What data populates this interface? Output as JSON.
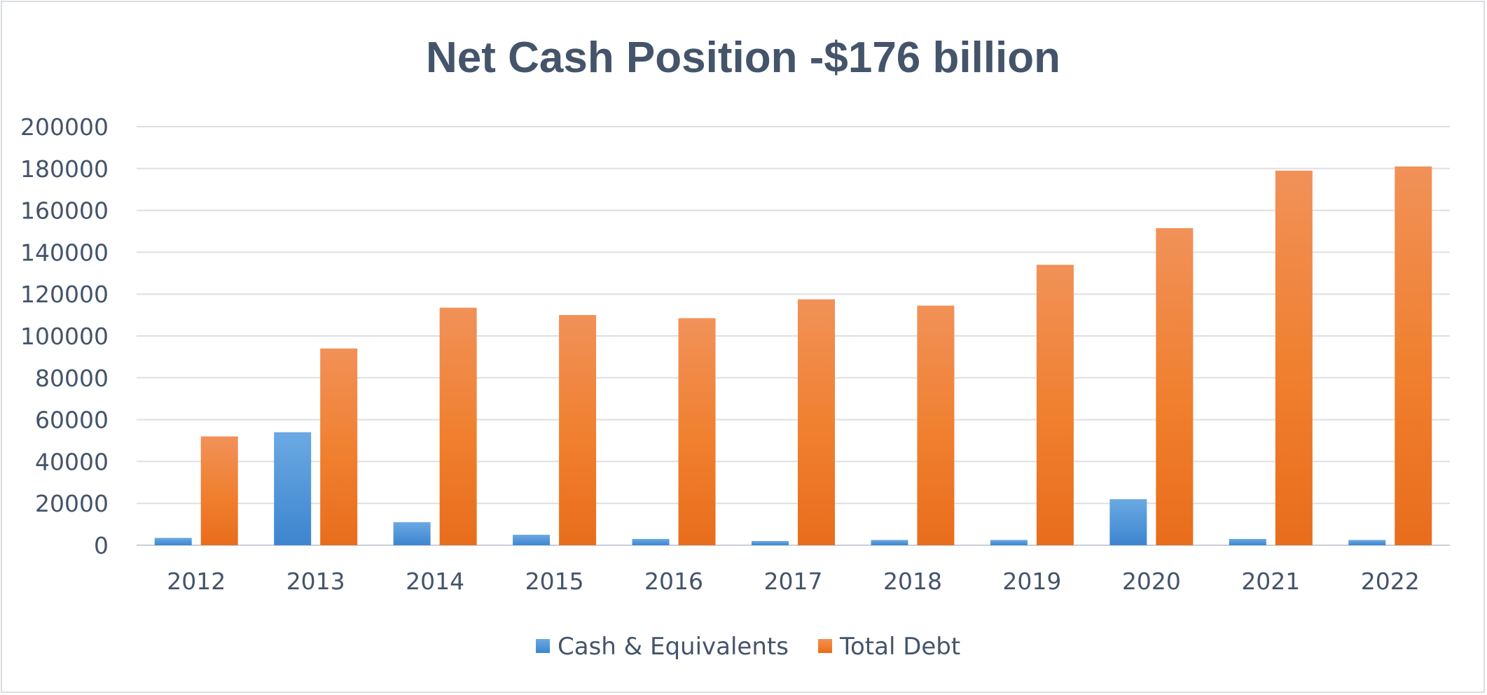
{
  "chart_data": {
    "type": "bar",
    "title": "Net Cash Position -$176 billion",
    "xlabel": "",
    "ylabel": "",
    "categories": [
      "2012",
      "2013",
      "2014",
      "2015",
      "2016",
      "2017",
      "2018",
      "2019",
      "2020",
      "2021",
      "2022"
    ],
    "series": [
      {
        "name": "Cash & Equivalents",
        "color": "#4a8fd6",
        "values": [
          3500,
          54000,
          11000,
          5000,
          3000,
          2000,
          2500,
          2500,
          22000,
          3000,
          2500
        ]
      },
      {
        "name": "Total Debt",
        "color": "#ef7d2d",
        "values": [
          52000,
          94000,
          113500,
          110000,
          108500,
          117500,
          114500,
          134000,
          151500,
          179000,
          181000
        ]
      }
    ],
    "ylim": [
      0,
      200000
    ],
    "yticks": [
      "0",
      "20000",
      "40000",
      "60000",
      "80000",
      "100000",
      "120000",
      "140000",
      "160000",
      "180000",
      "200000"
    ],
    "grid": true,
    "legend": "bottom-center"
  }
}
